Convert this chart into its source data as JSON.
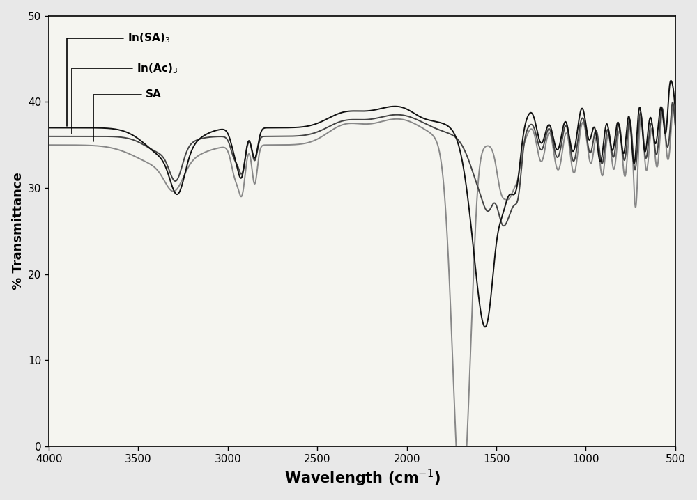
{
  "xlabel": "Wavelength (cm$^{-1}$)",
  "ylabel": "% Transmittance",
  "xlim": [
    4000,
    500
  ],
  "ylim": [
    0,
    50
  ],
  "yticks": [
    0,
    10,
    20,
    30,
    40,
    50
  ],
  "xticks": [
    4000,
    3500,
    3000,
    2500,
    2000,
    1500,
    1000,
    500
  ],
  "labels": [
    "In(SA)$_3$",
    "In(Ac)$_3$",
    "SA"
  ],
  "colors": [
    "#111111",
    "#444444",
    "#888888"
  ],
  "linewidths": [
    1.4,
    1.4,
    1.4
  ],
  "background": "#e8e8e8",
  "plot_bg": "#f5f5f0"
}
